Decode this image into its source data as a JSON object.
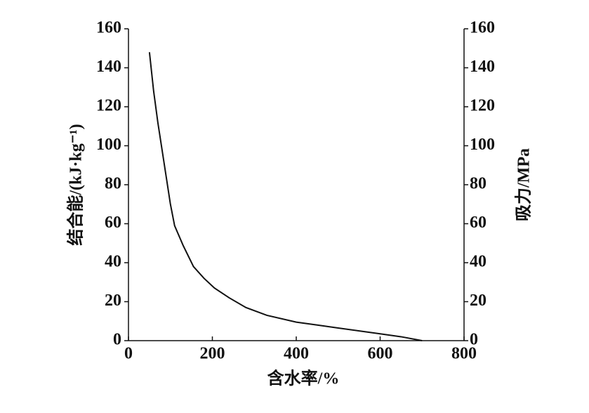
{
  "chart_data": {
    "type": "line",
    "x_label": "含水率/%",
    "y_label": "结合能/(kJ·kg⁻¹)",
    "y2_label": "吸力/MPa",
    "xlim": [
      0,
      800
    ],
    "xticks": [
      0,
      200,
      400,
      600,
      800
    ],
    "ylim": [
      0,
      160
    ],
    "yticks": [
      0,
      20,
      40,
      60,
      80,
      100,
      120,
      140,
      160
    ],
    "y2lim": [
      0,
      160
    ],
    "y2ticks": [
      0,
      20,
      40,
      60,
      80,
      100,
      120,
      140,
      160
    ],
    "x": [
      50,
      60,
      70,
      80,
      90,
      100,
      110,
      130,
      155,
      180,
      205,
      240,
      280,
      330,
      400,
      450,
      500,
      550,
      600,
      650,
      700
    ],
    "series": [
      {
        "color": "#111111",
        "values": [
          148,
          128,
          112,
          98,
          84,
          70,
          59,
          49,
          38,
          32,
          27,
          22,
          17,
          13,
          9.5,
          8,
          6.5,
          5,
          3.5,
          2,
          0
        ]
      }
    ]
  }
}
